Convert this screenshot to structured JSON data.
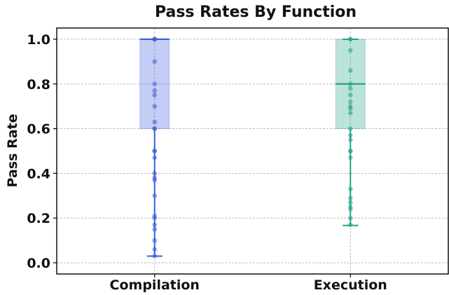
{
  "chart_data": {
    "type": "box",
    "title": "Pass Rates By Function",
    "xlabel": "",
    "ylabel": "Pass Rate",
    "ylim": [
      -0.05,
      1.05
    ],
    "yticks": [
      0.0,
      0.2,
      0.4,
      0.6,
      0.8,
      1.0
    ],
    "ytick_labels": [
      "0.0",
      "0.2",
      "0.4",
      "0.6",
      "0.8",
      "1.0"
    ],
    "grid": true,
    "categories": [
      "Compilation",
      "Execution"
    ],
    "series": [
      {
        "category": "Compilation",
        "color": "#3b5bdb",
        "box": {
          "whisker_low": 0.03,
          "q1": 0.6,
          "median": 1.0,
          "q3": 1.0,
          "whisker_high": 1.0
        },
        "points": [
          1.0,
          1.0,
          1.0,
          0.9,
          0.8,
          0.77,
          0.75,
          0.7,
          0.63,
          0.6,
          0.6,
          0.5,
          0.5,
          0.47,
          0.4,
          0.38,
          0.37,
          0.3,
          0.21,
          0.2,
          0.17,
          0.15,
          0.1,
          0.06,
          0.03
        ]
      },
      {
        "category": "Execution",
        "color": "#20a386",
        "box": {
          "whisker_low": 0.167,
          "q1": 0.6,
          "median": 0.8,
          "q3": 1.0,
          "whisker_high": 1.0
        },
        "points": [
          1.0,
          1.0,
          0.95,
          0.86,
          0.8,
          0.78,
          0.75,
          0.72,
          0.7,
          0.69,
          0.67,
          0.6,
          0.57,
          0.55,
          0.5,
          0.5,
          0.47,
          0.33,
          0.29,
          0.27,
          0.25,
          0.24,
          0.2,
          0.17
        ]
      }
    ]
  }
}
